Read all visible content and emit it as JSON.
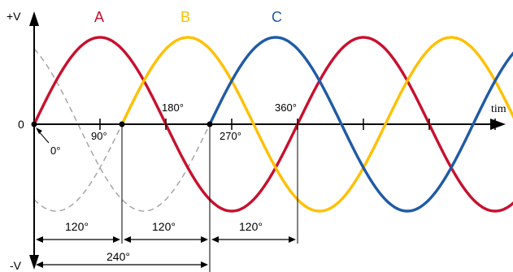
{
  "chart_data": {
    "type": "line",
    "title": "",
    "xlabel": "tim",
    "y_top_label": "+V",
    "y_bottom_label": "-V",
    "origin_label": "0",
    "x_unit": "degrees",
    "x_range": [
      0,
      675
    ],
    "y_range": [
      -1,
      1
    ],
    "series": [
      {
        "name": "A",
        "color": "#c8102e",
        "phase_deg": 0,
        "x_range": [
          0,
          675
        ]
      },
      {
        "name": "B",
        "color": "#ffc000",
        "phase_deg": 120,
        "x_range": [
          120,
          675
        ]
      },
      {
        "name": "C",
        "color": "#1f5aa6",
        "phase_deg": 240,
        "x_range": [
          240,
          675
        ]
      }
    ],
    "ghost_series": {
      "style": "dashed",
      "color": "#a6a6a6",
      "x_range": [
        0,
        240
      ]
    },
    "tick_labels": [
      "90°",
      "180°",
      "270°",
      "360°"
    ],
    "origin_angle_label": "0°",
    "phase_spans": [
      {
        "label": "120°",
        "from_deg": 0,
        "to_deg": 120
      },
      {
        "label": "120°",
        "from_deg": 120,
        "to_deg": 240
      },
      {
        "label": "120°",
        "from_deg": 240,
        "to_deg": 360
      },
      {
        "label": "240°",
        "from_deg": 0,
        "to_deg": 240
      }
    ]
  }
}
